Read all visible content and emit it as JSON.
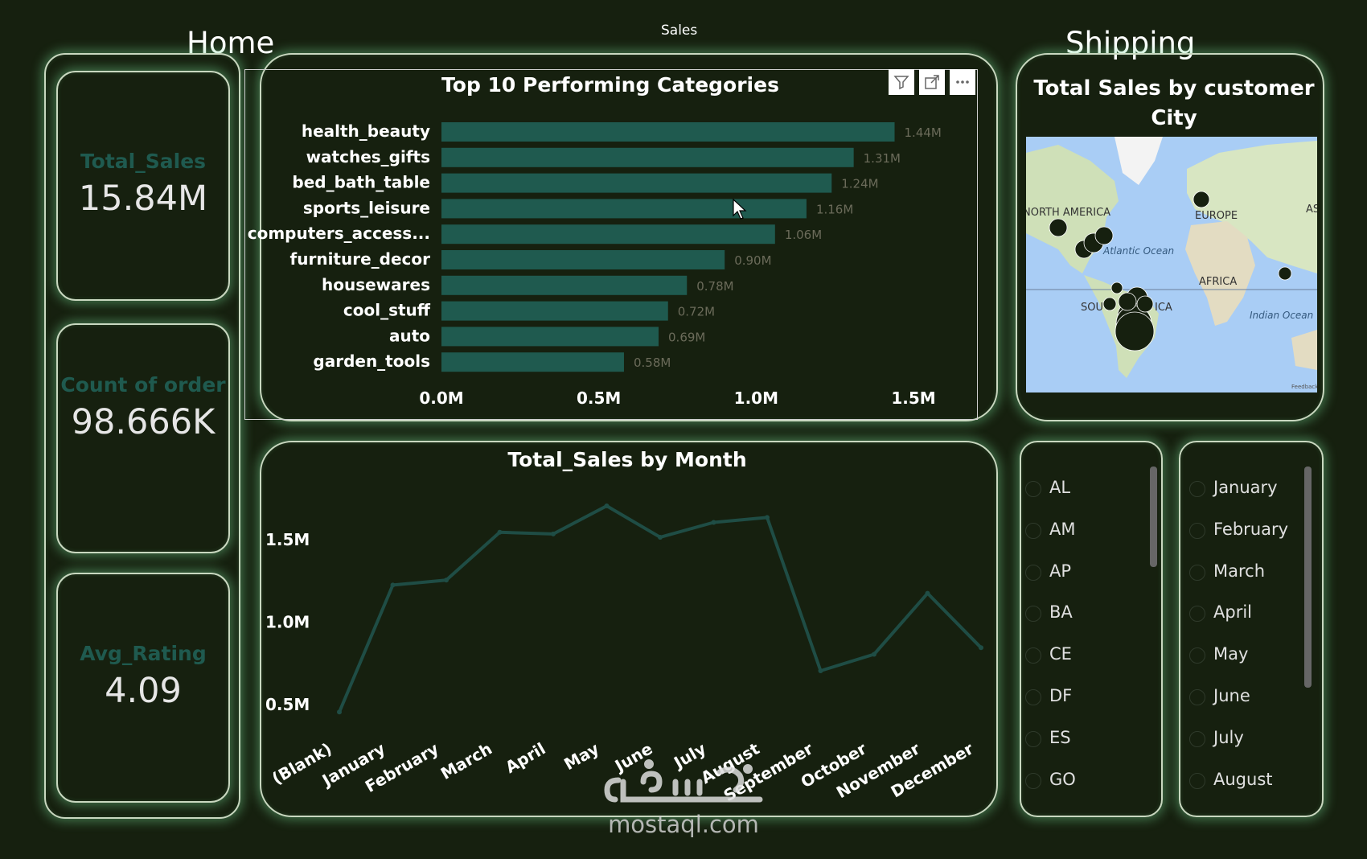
{
  "nav": {
    "home": "Home",
    "sales": "Sales",
    "shipping": "Shipping"
  },
  "kpis": [
    {
      "label": "Total_Sales",
      "value": "15.84M"
    },
    {
      "label": "Count of order",
      "value": "98.666K"
    },
    {
      "label": "Avg_Rating",
      "value": "4.09"
    }
  ],
  "colors": {
    "accent": "#1f5a4f",
    "background": "#16200f",
    "line": "#1f4d45",
    "glow": "#78dc96"
  },
  "toolbar": {
    "filter_icon": "filter-icon",
    "focus_icon": "focus-mode-icon",
    "more_icon": "more-options-icon"
  },
  "map": {
    "title": "Total Sales by customer City",
    "labels": [
      "NORTH AMERICA",
      "EUROPE",
      "AS",
      "Atlantic Ocean",
      "AFRICA",
      "SOU",
      "ICA",
      "Indian Ocean"
    ],
    "attribution": "Feedback"
  },
  "slicers": {
    "state": [
      "AL",
      "AM",
      "AP",
      "BA",
      "CE",
      "DF",
      "ES",
      "GO"
    ],
    "month": [
      "January",
      "February",
      "March",
      "April",
      "May",
      "June",
      "July",
      "August"
    ]
  },
  "watermark": {
    "logo": "مستقل",
    "url": "mostaql.com"
  },
  "chart_data": [
    {
      "type": "bar",
      "orientation": "horizontal",
      "title": "Top 10 Performing Categories",
      "categories": [
        "health_beauty",
        "watches_gifts",
        "bed_bath_table",
        "sports_leisure",
        "computers_access...",
        "furniture_decor",
        "housewares",
        "cool_stuff",
        "auto",
        "garden_tools"
      ],
      "values": [
        1.44,
        1.31,
        1.24,
        1.16,
        1.06,
        0.9,
        0.78,
        0.72,
        0.69,
        0.58
      ],
      "data_labels": [
        "1.44M",
        "1.31M",
        "1.24M",
        "1.16M",
        "1.06M",
        "0.90M",
        "0.78M",
        "0.72M",
        "0.69M",
        "0.58M"
      ],
      "x_ticks": [
        "0.0M",
        "0.5M",
        "1.0M",
        "1.5M"
      ],
      "xlim": [
        0,
        1.5
      ],
      "color": "#1f5a4f",
      "grid": false
    },
    {
      "type": "line",
      "title": "Total_Sales by Month",
      "categories": [
        "(Blank)",
        "January",
        "February",
        "March",
        "April",
        "May",
        "June",
        "July",
        "August",
        "September",
        "October",
        "November",
        "December"
      ],
      "values": [
        0.45,
        1.22,
        1.25,
        1.54,
        1.53,
        1.7,
        1.51,
        1.6,
        1.63,
        0.7,
        0.8,
        1.17,
        0.84
      ],
      "y_ticks": [
        "0.5M",
        "1.0M",
        "1.5M"
      ],
      "ylim": [
        0.45,
        1.75
      ],
      "color": "#1f4d45",
      "grid": false
    }
  ]
}
